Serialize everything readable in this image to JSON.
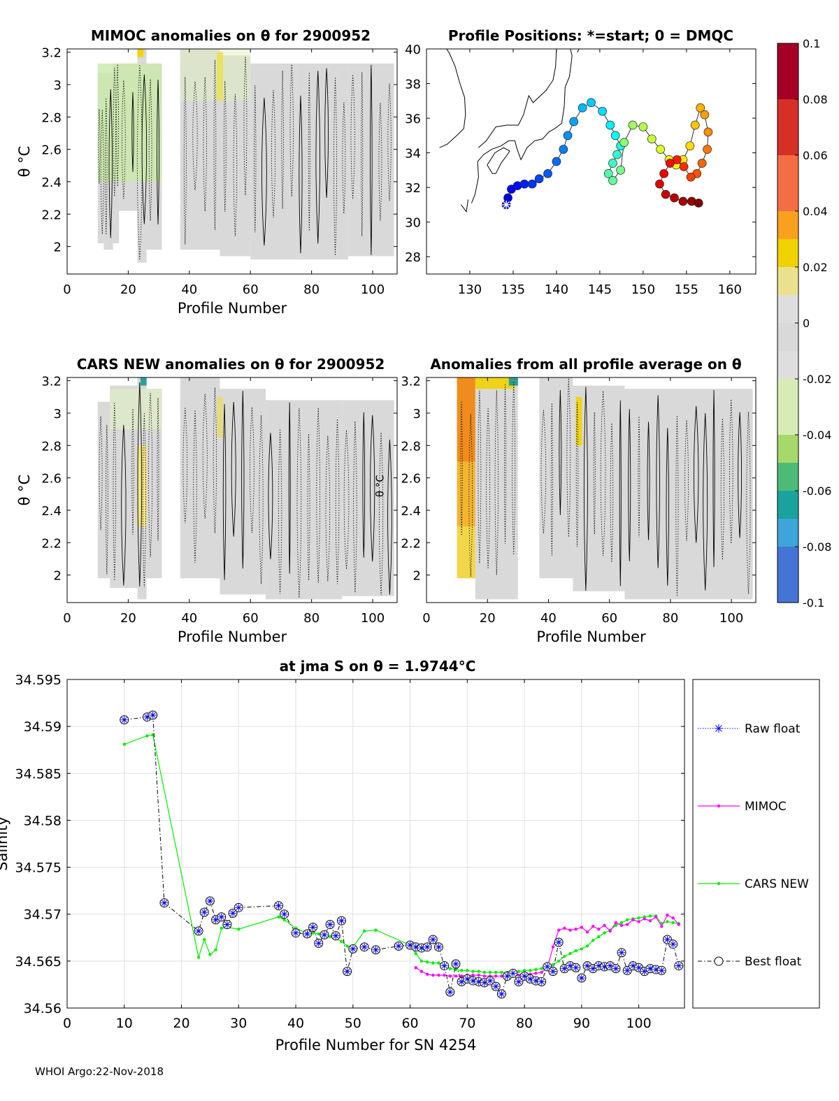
{
  "footer": "WHOI Argo:22-Nov-2018",
  "colors": {
    "raw": "#0000ff",
    "mimoc": "#ff00ff",
    "cars": "#00ee00",
    "best": "#000000",
    "grid": "#e0e0e0",
    "fieldgray": "#d9d9d9"
  },
  "chart_data": [
    {
      "type": "heatmap",
      "title": "MIMOC anomalies on θ  for 2900952",
      "xlabel": "Profile Number",
      "ylabel": "θ °C",
      "xlim": [
        0,
        108
      ],
      "ylim": [
        1.83,
        3.22
      ],
      "xticks": [
        0,
        20,
        40,
        60,
        80,
        100
      ],
      "yticks": [
        2,
        2.2,
        2.4,
        2.6,
        2.8,
        3,
        3.2
      ],
      "yticklabels": [
        "2",
        "2.2",
        "2.4",
        "2.6",
        "2.8",
        "3",
        "3.2"
      ]
    },
    {
      "type": "scatter",
      "title": "Profile Positions: *=start; 0 = DMQC",
      "xlabel": "",
      "ylabel": "",
      "xlim": [
        125,
        163
      ],
      "ylim": [
        27,
        40
      ],
      "xticks": [
        130,
        135,
        140,
        145,
        150,
        155,
        160
      ],
      "yticks": [
        28,
        30,
        32,
        34,
        36,
        38,
        40
      ],
      "lon": [
        134.2,
        134.4,
        134.8,
        135.5,
        136.3,
        137.2,
        138.0,
        139.0,
        140.0,
        140.8,
        141.3,
        142.0,
        143.0,
        144.0,
        145.3,
        146.2,
        146.8,
        147.4,
        147.0,
        146.5,
        146.0,
        146.5,
        147.4,
        147.8,
        148.8,
        150.0,
        151.0,
        152.0,
        153.0,
        153.8,
        154.6,
        155.4,
        156.0,
        156.6,
        157.1,
        157.5,
        157.4,
        156.8,
        156.2,
        155.5,
        154.7,
        153.9,
        153.1,
        152.4,
        151.9,
        152.6,
        153.6,
        154.6,
        155.6,
        156.4
      ],
      "lat": [
        31.0,
        31.4,
        31.9,
        32.1,
        32.2,
        32.2,
        32.5,
        32.8,
        33.5,
        34.2,
        35.0,
        35.8,
        36.6,
        36.9,
        36.4,
        35.6,
        35.0,
        34.4,
        33.9,
        33.4,
        32.8,
        32.4,
        33.0,
        34.6,
        35.6,
        35.5,
        34.8,
        34.2,
        33.6,
        33.3,
        33.6,
        34.4,
        35.6,
        36.6,
        36.2,
        35.2,
        34.2,
        33.4,
        32.8,
        32.6,
        33.2,
        33.6,
        33.4,
        32.8,
        32.2,
        31.6,
        31.4,
        31.2,
        31.2,
        31.1
      ],
      "start_marker": "*",
      "colorbar": {
        "ticks": [
          0.1,
          0.08,
          0.06,
          0.04,
          0.02,
          0,
          -0.02,
          -0.04,
          -0.06,
          -0.08,
          -0.1
        ],
        "labels": [
          "0.1",
          "0.08",
          "0.06",
          "0.04",
          "0.02",
          "0",
          "-0.02",
          "-0.04",
          "-0.06",
          "-0.08",
          "-0.1"
        ],
        "range": [
          -0.1,
          0.1
        ]
      }
    },
    {
      "type": "heatmap",
      "title": "CARS NEW anomalies on θ for 2900952",
      "xlabel": "Profile Number",
      "ylabel": "θ °C",
      "xlim": [
        0,
        108
      ],
      "ylim": [
        1.83,
        3.22
      ],
      "xticks": [
        0,
        20,
        40,
        60,
        80,
        100
      ],
      "yticks": [
        2,
        2.2,
        2.4,
        2.6,
        2.8,
        3,
        3.2
      ],
      "yticklabels": [
        "2",
        "2.2",
        "2.4",
        "2.6",
        "2.8",
        "3",
        "3.2"
      ],
      "annotation": "θ °C"
    },
    {
      "type": "heatmap",
      "title": "Anomalies from all profile average on θ",
      "xlabel": "Profile Number",
      "ylabel": "",
      "xlim": [
        0,
        108
      ],
      "ylim": [
        1.83,
        3.22
      ],
      "xticks": [
        0,
        20,
        40,
        60,
        80,
        100
      ],
      "yticks": [
        2,
        2.2,
        2.4,
        2.6,
        2.8,
        3,
        3.2
      ],
      "yticklabels": [
        "2",
        "2.2",
        "2.4",
        "2.6",
        "2.8",
        "3",
        "3.2"
      ]
    },
    {
      "type": "line",
      "title": "at jma S on θ = 1.9744°C",
      "xlabel": "Profile Number for SN 4254",
      "ylabel": "Salinity",
      "xlim": [
        0,
        108
      ],
      "ylim": [
        34.56,
        34.595
      ],
      "xticks": [
        0,
        10,
        20,
        30,
        40,
        50,
        60,
        70,
        80,
        90,
        100
      ],
      "yticks": [
        34.56,
        34.565,
        34.57,
        34.575,
        34.58,
        34.585,
        34.59,
        34.595
      ],
      "yticklabels": [
        "34.56",
        "34.565",
        "34.57",
        "34.575",
        "34.58",
        "34.585",
        "34.59",
        "34.595"
      ],
      "grid": true,
      "legend": [
        "Raw float",
        "MIMOC",
        "CARS NEW",
        "Best float"
      ],
      "legend_position": "outside-right",
      "series": [
        {
          "name": "Best float",
          "x": [
            10,
            14,
            15,
            17,
            23,
            24,
            25,
            26,
            27,
            28,
            29,
            30,
            37,
            38,
            40,
            42,
            43,
            44,
            45,
            46,
            47,
            48,
            49,
            50,
            52,
            54,
            58,
            60,
            61,
            62,
            63,
            64,
            65,
            66,
            67,
            68,
            69,
            70,
            71,
            72,
            73,
            74,
            75,
            76,
            77,
            78,
            79,
            80,
            81,
            82,
            83,
            84,
            85,
            86,
            87,
            88,
            89,
            90,
            91,
            92,
            93,
            94,
            95,
            96,
            97,
            98,
            99,
            100,
            101,
            102,
            103,
            104,
            105,
            106,
            107
          ],
          "y": [
            34.5907,
            34.591,
            34.5912,
            34.5712,
            34.5682,
            34.5702,
            34.5714,
            34.5694,
            34.5697,
            34.5689,
            34.5701,
            34.5707,
            34.5709,
            34.57,
            34.568,
            34.5679,
            34.5686,
            34.5669,
            34.5678,
            34.5689,
            34.5677,
            34.5693,
            34.5639,
            34.5663,
            34.5665,
            34.5662,
            34.5666,
            34.5667,
            34.5665,
            34.5664,
            34.5665,
            34.5673,
            34.5665,
            34.5645,
            34.5617,
            34.5647,
            34.5628,
            34.5631,
            34.5629,
            34.5628,
            34.5627,
            34.5629,
            34.5623,
            34.5615,
            34.5634,
            34.5637,
            34.5628,
            34.5634,
            34.5631,
            34.5629,
            34.5628,
            34.5644,
            34.5639,
            34.567,
            34.5642,
            34.5645,
            34.5643,
            34.5632,
            34.5645,
            34.5642,
            34.5645,
            34.5644,
            34.5645,
            34.5642,
            34.5659,
            34.564,
            34.5645,
            34.5643,
            34.5639,
            34.5642,
            34.5641,
            34.564,
            34.5673,
            34.5668,
            34.5645
          ]
        },
        {
          "name": "MIMOC",
          "x": [
            61,
            62,
            63,
            64,
            65,
            66,
            67,
            68,
            69,
            70,
            71,
            72,
            73,
            74,
            75,
            76,
            77,
            78,
            79,
            80,
            81,
            82,
            83,
            84,
            85,
            86,
            87,
            88,
            89,
            90,
            91,
            92,
            93,
            94,
            95,
            96,
            97,
            98,
            99,
            100,
            101,
            102,
            103,
            104,
            105,
            106,
            107
          ],
          "y": [
            34.5643,
            34.5639,
            34.5636,
            34.5635,
            34.5635,
            34.5635,
            34.5634,
            34.5634,
            34.5634,
            34.5635,
            34.5635,
            34.5635,
            34.5634,
            34.5634,
            34.5634,
            34.5634,
            34.5634,
            34.5634,
            34.5635,
            34.5635,
            34.5636,
            34.5637,
            34.5638,
            34.5643,
            34.5665,
            34.5683,
            34.5685,
            34.5683,
            34.5684,
            34.5686,
            34.5681,
            34.5687,
            34.5684,
            34.5688,
            34.5682,
            34.5691,
            34.5688,
            34.5689,
            34.5694,
            34.5692,
            34.5695,
            34.5693,
            34.5697,
            34.5687,
            34.5699,
            34.5696,
            34.5689
          ]
        },
        {
          "name": "CARS NEW",
          "x": [
            10,
            14,
            15,
            23,
            24,
            25,
            26,
            27,
            28,
            30,
            37,
            38,
            40,
            42,
            43,
            44,
            45,
            46,
            47,
            48,
            49,
            50,
            52,
            54,
            60,
            61,
            62,
            63,
            64,
            65,
            66,
            67,
            68,
            69,
            70,
            71,
            72,
            73,
            74,
            75,
            76,
            77,
            78,
            79,
            80,
            81,
            82,
            83,
            84,
            85,
            86,
            87,
            88,
            89,
            90,
            91,
            92,
            93,
            94,
            95,
            96,
            97,
            98,
            99,
            100,
            101,
            102,
            103,
            104,
            105,
            106,
            107
          ],
          "y": [
            34.5881,
            34.589,
            34.5891,
            34.5654,
            34.5673,
            34.5657,
            34.5662,
            34.5685,
            34.5686,
            34.5684,
            34.5697,
            34.5694,
            34.5685,
            34.568,
            34.568,
            34.5679,
            34.5678,
            34.5676,
            34.5674,
            34.5671,
            34.5666,
            34.5665,
            34.5682,
            34.5683,
            34.5667,
            34.5658,
            34.565,
            34.5649,
            34.5648,
            34.5648,
            34.5645,
            34.5642,
            34.5641,
            34.564,
            34.564,
            34.5639,
            34.5639,
            34.5638,
            34.5638,
            34.5638,
            34.5638,
            34.5638,
            34.5639,
            34.5639,
            34.564,
            34.564,
            34.5641,
            34.5642,
            34.5644,
            34.5646,
            34.565,
            34.5655,
            34.5658,
            34.5661,
            34.5663,
            34.5666,
            34.5672,
            34.5676,
            34.568,
            34.5683,
            34.5688,
            34.5691,
            34.5694,
            34.5695,
            34.5696,
            34.5697,
            34.5698,
            34.5698,
            34.569,
            34.5692,
            34.5691,
            34.569
          ]
        }
      ]
    }
  ]
}
